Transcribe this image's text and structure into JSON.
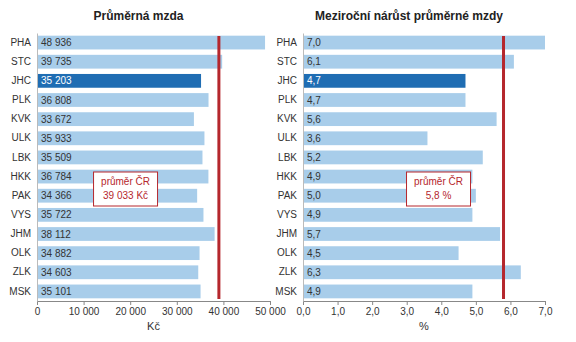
{
  "chart_data": [
    {
      "type": "bar",
      "orientation": "horizontal",
      "title": "Průměrná mzda",
      "x_label": "Kč",
      "categories": [
        "PHA",
        "STC",
        "JHC",
        "PLK",
        "KVK",
        "ULK",
        "LBK",
        "HKK",
        "PAK",
        "VYS",
        "JHM",
        "OLK",
        "ZLK",
        "MSK"
      ],
      "values": [
        48936,
        39735,
        35203,
        36808,
        33672,
        35933,
        35509,
        36784,
        34366,
        35722,
        38112,
        34882,
        34603,
        35101
      ],
      "value_labels": [
        "48 936",
        "39 735",
        "35 203",
        "36 808",
        "33 672",
        "35 933",
        "35 509",
        "36 784",
        "34 366",
        "35 722",
        "38 112",
        "34 882",
        "34 603",
        "35 101"
      ],
      "data_labels": true,
      "colors": [
        "#a8cdea",
        "#a8cdea",
        "#1f6db3",
        "#a8cdea",
        "#a8cdea",
        "#a8cdea",
        "#a8cdea",
        "#a8cdea",
        "#a8cdea",
        "#a8cdea",
        "#a8cdea",
        "#a8cdea",
        "#a8cdea",
        "#a8cdea"
      ],
      "xlim": [
        0,
        50000
      ],
      "xticks": [
        0,
        {
          "value": 10000,
          "label": "10 000"
        },
        {
          "value": 20000,
          "label": "20 000"
        },
        {
          "value": 30000,
          "label": "30 000"
        },
        {
          "value": 40000,
          "label": "40 000"
        },
        {
          "value": 50000,
          "label": "50 000"
        }
      ],
      "average": {
        "value": 39033,
        "label": "průměr ČR",
        "value_label": "39 033 Kč",
        "color": "#b5272d"
      }
    },
    {
      "type": "bar",
      "orientation": "horizontal",
      "title": "Meziroční nárůst průměrné mzdy",
      "x_label": "%",
      "categories": [
        "PHA",
        "STC",
        "JHC",
        "PLK",
        "KVK",
        "ULK",
        "LBK",
        "HKK",
        "PAK",
        "VYS",
        "JHM",
        "OLK",
        "ZLK",
        "MSK"
      ],
      "values": [
        7.0,
        6.1,
        4.7,
        4.7,
        5.6,
        3.6,
        5.2,
        4.9,
        5.0,
        4.9,
        5.7,
        4.5,
        6.3,
        4.9
      ],
      "value_labels": [
        "7,0",
        "6,1",
        "4,7",
        "4,7",
        "5,6",
        "3,6",
        "5,2",
        "4,9",
        "5,0",
        "4,9",
        "5,7",
        "4,5",
        "6,3",
        "4,9"
      ],
      "data_labels": true,
      "colors": [
        "#a8cdea",
        "#a8cdea",
        "#1f6db3",
        "#a8cdea",
        "#a8cdea",
        "#a8cdea",
        "#a8cdea",
        "#a8cdea",
        "#a8cdea",
        "#a8cdea",
        "#a8cdea",
        "#a8cdea",
        "#a8cdea",
        "#a8cdea"
      ],
      "xlim": [
        0,
        7
      ],
      "xticks": [
        {
          "value": 0,
          "label": "0,0"
        },
        {
          "value": 1,
          "label": "1,0"
        },
        {
          "value": 2,
          "label": "2,0"
        },
        {
          "value": 3,
          "label": "3,0"
        },
        {
          "value": 4,
          "label": "4,0"
        },
        {
          "value": 5,
          "label": "5,0"
        },
        {
          "value": 6,
          "label": "6,0"
        },
        {
          "value": 7,
          "label": "7,0"
        }
      ],
      "average": {
        "value": 5.8,
        "label": "průměr ČR",
        "value_label": "5,8 %",
        "color": "#b5272d"
      }
    }
  ]
}
